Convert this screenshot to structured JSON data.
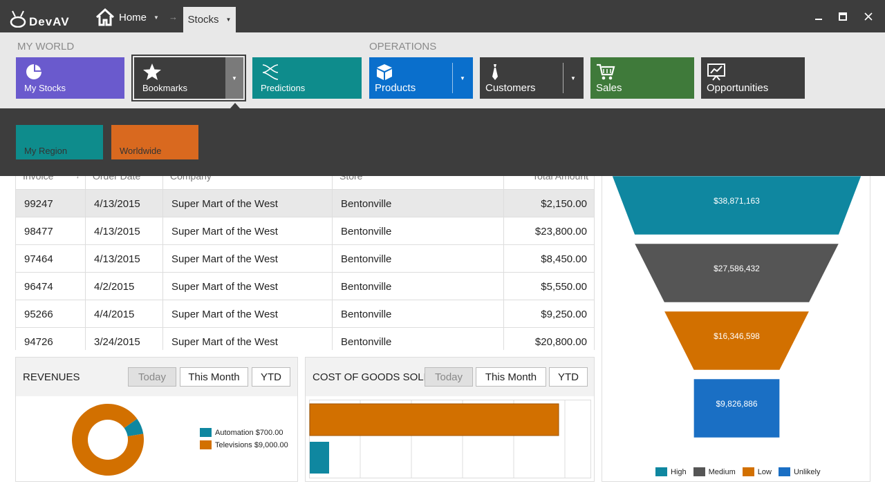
{
  "titlebar": {
    "app_name": "DevAV",
    "home_label": "Home",
    "current_tab": "Stocks"
  },
  "ribbon": {
    "groups": [
      {
        "label": "MY WORLD"
      },
      {
        "label": "OPERATIONS"
      }
    ],
    "my_world": [
      {
        "label": "My Stocks",
        "icon": "pie-chart-icon",
        "color": "#6a5acd"
      },
      {
        "label": "Bookmarks",
        "icon": "star-icon",
        "color": "#3d3d3d"
      },
      {
        "label": "Predictions",
        "icon": "predictions-icon",
        "color": "#0e8c8c"
      }
    ],
    "operations": [
      {
        "label": "Products",
        "icon": "box-icon",
        "color": "#0a6fcc"
      },
      {
        "label": "Customers",
        "icon": "tie-icon",
        "color": "#3d3d3d"
      },
      {
        "label": "Sales",
        "icon": "cart-icon",
        "color": "#3f7a3a"
      },
      {
        "label": "Opportunities",
        "icon": "presentation-icon",
        "color": "#3d3d3d"
      }
    ]
  },
  "bookmarks_panel": {
    "items": [
      {
        "label": "My Region",
        "color": "#0e8c8c"
      },
      {
        "label": "Worldwide",
        "color": "#d9691f"
      }
    ]
  },
  "grid": {
    "columns": [
      "Invoice",
      "Order Date",
      "Company",
      "Store",
      "Total Amount"
    ],
    "rows": [
      {
        "invoice": "99247",
        "date": "4/13/2015",
        "company": "Super Mart of the West",
        "store": "Bentonville",
        "amount": "$2,150.00"
      },
      {
        "invoice": "98477",
        "date": "4/13/2015",
        "company": "Super Mart of the West",
        "store": "Bentonville",
        "amount": "$23,800.00"
      },
      {
        "invoice": "97464",
        "date": "4/13/2015",
        "company": "Super Mart of the West",
        "store": "Bentonville",
        "amount": "$8,450.00"
      },
      {
        "invoice": "96474",
        "date": "4/2/2015",
        "company": "Super Mart of the West",
        "store": "Bentonville",
        "amount": "$5,550.00"
      },
      {
        "invoice": "95266",
        "date": "4/4/2015",
        "company": "Super Mart of the West",
        "store": "Bentonville",
        "amount": "$9,250.00"
      },
      {
        "invoice": "94726",
        "date": "3/24/2015",
        "company": "Super Mart of the West",
        "store": "Bentonville",
        "amount": "$20,800.00"
      }
    ]
  },
  "revenues": {
    "title": "REVENUES",
    "periods": [
      "Today",
      "This Month",
      "YTD"
    ],
    "legend": [
      "Automation $700.00",
      "Televisions $9,000.00"
    ]
  },
  "cogs": {
    "title": "COST OF GOODS SOLD",
    "periods": [
      "Today",
      "This Month",
      "YTD"
    ]
  },
  "funnel": {
    "labels": [
      "$38,871,163",
      "$27,586,432",
      "$16,346,598",
      "$9,826,886"
    ],
    "legend": [
      "High",
      "Medium",
      "Low",
      "Unlikely"
    ]
  },
  "chart_data": [
    {
      "type": "pie",
      "categories": [
        "Automation",
        "Televisions"
      ],
      "values": [
        700,
        9000
      ],
      "colors": [
        "#0f87a0",
        "#d27000"
      ]
    },
    {
      "type": "bar",
      "categories": [
        "Televisions",
        "Automation"
      ],
      "values": [
        9000,
        700
      ],
      "colors": [
        "#d27000",
        "#0f87a0"
      ]
    },
    {
      "type": "bar",
      "categories": [
        "High",
        "Medium",
        "Low",
        "Unlikely"
      ],
      "values": [
        38871163,
        27586432,
        16346598,
        9826886
      ],
      "colors": [
        "#0f87a0",
        "#555555",
        "#d27000",
        "#1a6fc4"
      ]
    }
  ]
}
